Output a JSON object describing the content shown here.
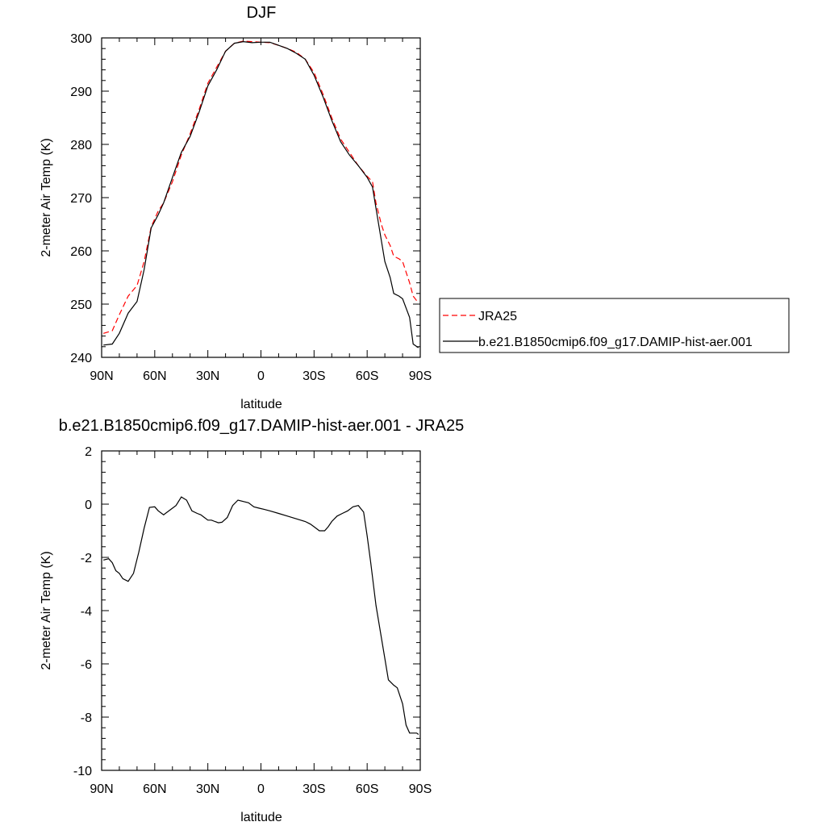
{
  "chart_data": [
    {
      "type": "line",
      "title": "DJF",
      "xlabel": "latitude",
      "ylabel": "2-meter Air Temp (K)",
      "xlim": [
        90,
        -90
      ],
      "ylim": [
        240,
        300
      ],
      "x_ticks": [
        90,
        60,
        30,
        0,
        -30,
        -60,
        -90
      ],
      "x_tick_labels": [
        "90N",
        "60N",
        "30N",
        "0",
        "30S",
        "60S",
        "90S"
      ],
      "y_ticks": [
        240,
        250,
        260,
        270,
        280,
        290,
        300
      ],
      "y_tick_labels": [
        "240",
        "250",
        "260",
        "270",
        "280",
        "290",
        "300"
      ],
      "legend_position": "right",
      "series": [
        {
          "name": "JRA25",
          "color": "#ff0000",
          "dash": "dashed",
          "x": [
            89,
            84,
            80,
            75,
            70,
            66,
            62,
            58,
            55,
            50,
            45,
            40,
            35,
            30,
            25,
            20,
            15,
            10,
            5,
            0,
            -5,
            -10,
            -15,
            -20,
            -25,
            -30,
            -35,
            -40,
            -45,
            -50,
            -55,
            -60,
            -63,
            -65,
            -68,
            -70,
            -73,
            -75,
            -78,
            -80,
            -84,
            -86,
            -89
          ],
          "y": [
            244.5,
            245,
            248,
            251.5,
            253.5,
            258,
            264.5,
            267.5,
            269,
            273,
            278,
            282,
            286.5,
            291.5,
            294.5,
            297.5,
            299,
            299.4,
            299.3,
            299.2,
            299.1,
            298.6,
            298,
            297.3,
            296,
            293.5,
            289.5,
            285,
            281,
            278.5,
            276,
            274,
            273,
            269,
            265,
            263,
            261,
            259,
            258.5,
            258,
            254,
            251.5,
            250.2
          ]
        },
        {
          "name": "b.e21.B1850cmip6.f09_g17.DAMIP-hist-aer.001",
          "color": "#000000",
          "dash": "solid",
          "x": [
            89,
            84,
            80,
            75,
            70,
            66,
            62,
            58,
            55,
            50,
            45,
            40,
            35,
            30,
            25,
            20,
            15,
            10,
            5,
            0,
            -5,
            -10,
            -15,
            -20,
            -25,
            -30,
            -35,
            -40,
            -45,
            -50,
            -55,
            -60,
            -63,
            -65,
            -68,
            -70,
            -73,
            -75,
            -78,
            -80,
            -84,
            -86,
            -89
          ],
          "y": [
            242.3,
            242.5,
            244.5,
            248.3,
            250.5,
            256.5,
            264.3,
            266.8,
            269,
            273.8,
            278.5,
            281.5,
            286,
            291,
            294,
            297.5,
            299,
            299.3,
            299.1,
            299.2,
            299.2,
            298.6,
            298,
            297.1,
            296,
            293,
            289,
            284.5,
            280.5,
            278,
            276,
            273.8,
            272,
            268,
            262,
            258,
            255,
            252,
            251.5,
            251,
            247.5,
            242.5,
            241.8
          ]
        }
      ]
    },
    {
      "type": "line",
      "title": "b.e21.B1850cmip6.f09_g17.DAMIP-hist-aer.001 - JRA25",
      "xlabel": "latitude",
      "ylabel": "2-meter Air Temp (K)",
      "xlim": [
        90,
        -90
      ],
      "ylim": [
        -10,
        2
      ],
      "x_ticks": [
        90,
        60,
        30,
        0,
        -30,
        -60,
        -90
      ],
      "x_tick_labels": [
        "90N",
        "60N",
        "30N",
        "0",
        "30S",
        "60S",
        "90S"
      ],
      "y_ticks": [
        -10,
        -8,
        -6,
        -4,
        -2,
        0,
        2
      ],
      "y_tick_labels": [
        "-10",
        "-8",
        "-6",
        "-4",
        "-2",
        "0",
        "2"
      ],
      "series": [
        {
          "color": "#000000",
          "dash": "solid",
          "x": [
            89,
            86,
            84,
            82,
            80,
            78,
            75,
            72,
            69,
            66,
            63,
            60,
            58,
            55,
            51,
            48,
            45,
            42,
            39,
            36,
            34,
            32,
            30,
            28,
            26,
            24,
            22,
            19,
            16,
            13,
            10,
            7,
            4,
            1,
            -2,
            -5,
            -10,
            -15,
            -20,
            -25,
            -28,
            -30,
            -33,
            -36,
            -38,
            -40,
            -43,
            -46,
            -49,
            -52,
            -55,
            -58,
            -60,
            -62,
            -65,
            -68,
            -70,
            -72,
            -75,
            -77,
            -80,
            -82,
            -84,
            -86,
            -88,
            -89
          ],
          "y": [
            -2.1,
            -2.05,
            -2.2,
            -2.5,
            -2.6,
            -2.8,
            -2.9,
            -2.6,
            -1.8,
            -0.9,
            -0.12,
            -0.1,
            -0.25,
            -0.4,
            -0.2,
            -0.05,
            0.27,
            0.15,
            -0.25,
            -0.35,
            -0.4,
            -0.5,
            -0.6,
            -0.6,
            -0.65,
            -0.7,
            -0.68,
            -0.5,
            -0.05,
            0.15,
            0.1,
            0.05,
            -0.1,
            -0.15,
            -0.2,
            -0.25,
            -0.35,
            -0.45,
            -0.55,
            -0.65,
            -0.75,
            -0.85,
            -1.0,
            -1.0,
            -0.85,
            -0.65,
            -0.45,
            -0.35,
            -0.25,
            -0.1,
            -0.05,
            -0.3,
            -1.2,
            -2.2,
            -3.8,
            -5.0,
            -5.8,
            -6.6,
            -6.8,
            -6.9,
            -7.5,
            -8.3,
            -8.6,
            -8.6,
            -8.6,
            -8.65
          ]
        }
      ]
    }
  ]
}
